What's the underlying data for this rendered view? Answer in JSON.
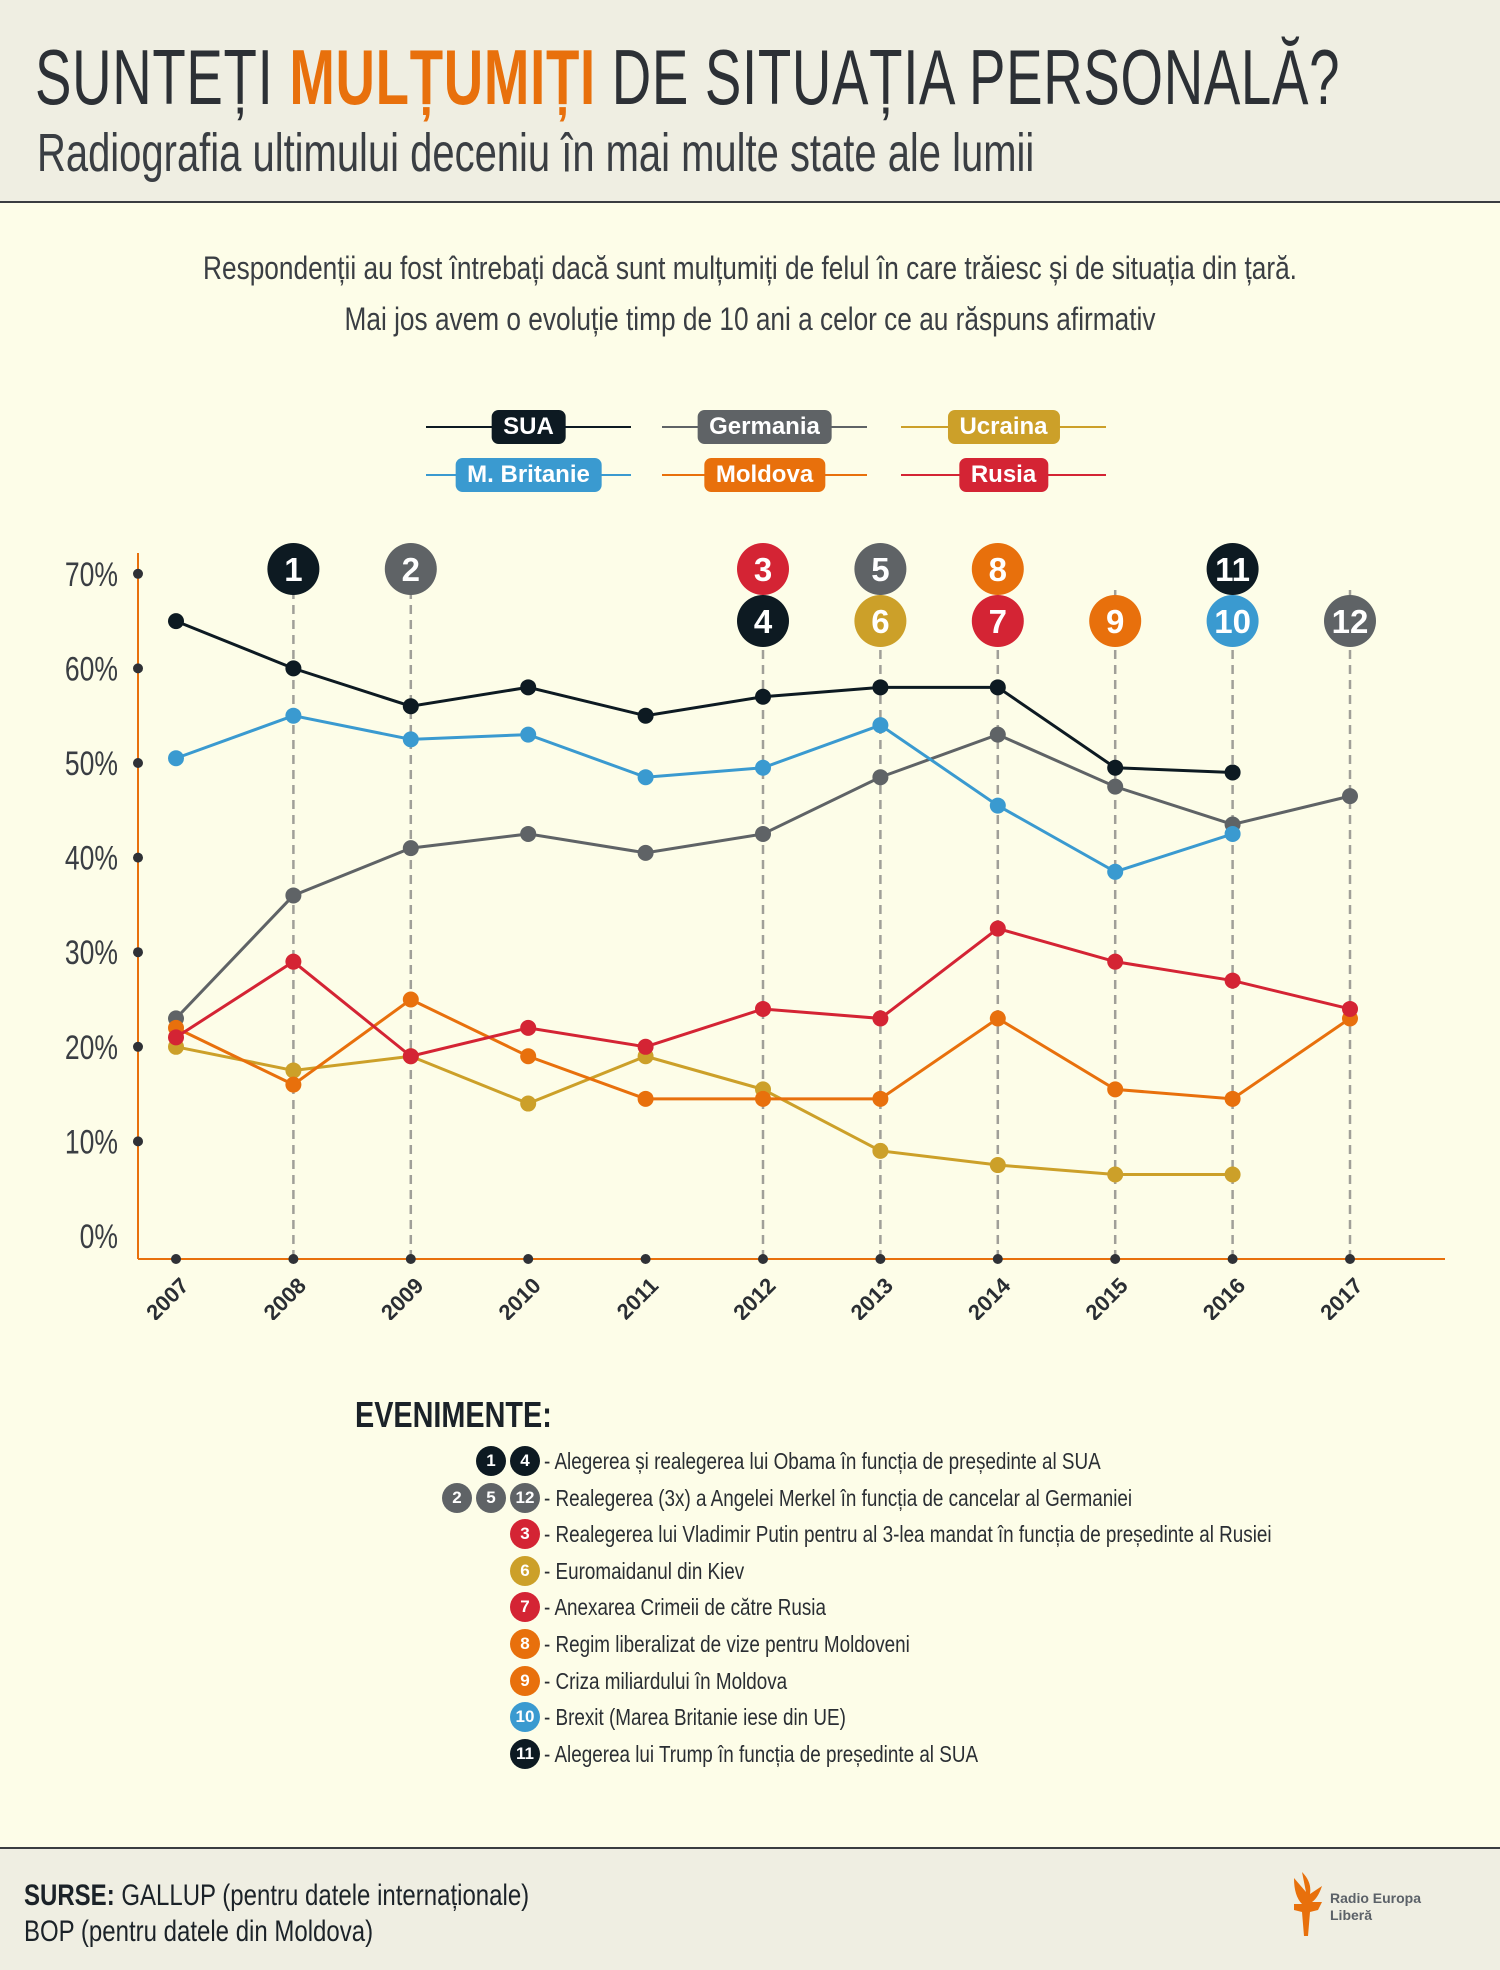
{
  "header": {
    "title_pre": "SUNTEȚI ",
    "title_highlight": "MULȚUMIȚI",
    "title_post": " DE SITUAȚIA PERSONALĂ?",
    "subtitle": "Radiografia ultimului deceniu în mai multe state ale lumii"
  },
  "intro": {
    "line1": "Respondenții au fost întrebați dacă sunt mulțumiți de felul în care trăiesc și de situația din țară.",
    "line2": "Mai jos avem o evoluție timp de 10 ani a celor ce au răspuns afirmativ"
  },
  "colors": {
    "accent": "#e8700c",
    "SUA": "#0d1a22",
    "Germania": "#5f6366",
    "Ucraina": "#cca029",
    "M. Britanie": "#3a9ad0",
    "Moldova": "#e8700c",
    "Rusia": "#d42434",
    "marker": "#2f3136",
    "dash": "#a09f98"
  },
  "chart_data": {
    "type": "line",
    "title": "",
    "xlabel": "",
    "ylabel": "",
    "ylim": [
      0,
      70
    ],
    "yticks": [
      0,
      10,
      20,
      30,
      40,
      50,
      60,
      70
    ],
    "ytick_labels": [
      "0%",
      "10%",
      "20%",
      "30%",
      "40%",
      "50%",
      "60%",
      "70%"
    ],
    "x": [
      2007,
      2008,
      2009,
      2010,
      2011,
      2012,
      2013,
      2014,
      2015,
      2016,
      2017
    ],
    "xtick_labels": [
      "2007",
      "2008",
      "2009",
      "2010",
      "2011",
      "2012",
      "2013",
      "2014",
      "2015",
      "2016",
      "2017"
    ],
    "legend_position": "top",
    "series": [
      {
        "name": "SUA",
        "values": [
          65,
          60,
          56,
          58,
          55,
          57,
          58,
          58,
          49.5,
          49,
          null
        ]
      },
      {
        "name": "Germania",
        "values": [
          23,
          36,
          41,
          42.5,
          40.5,
          42.5,
          48.5,
          53,
          47.5,
          43.5,
          46.5
        ]
      },
      {
        "name": "Ucraina",
        "values": [
          20,
          17.5,
          19,
          14,
          19,
          15.5,
          9,
          7.5,
          6.5,
          6.5,
          null
        ]
      },
      {
        "name": "M. Britanie",
        "values": [
          50.5,
          55,
          52.5,
          53,
          48.5,
          49.5,
          54,
          45.5,
          38.5,
          42.5,
          null
        ]
      },
      {
        "name": "Moldova",
        "values": [
          22,
          16,
          25,
          19,
          14.5,
          14.5,
          14.5,
          23,
          15.5,
          14.5,
          23
        ]
      },
      {
        "name": "Rusia",
        "values": [
          21,
          29,
          19,
          22,
          20,
          24,
          23,
          32.5,
          29,
          27,
          24
        ]
      }
    ],
    "annotations": [
      {
        "num": "1",
        "year": 2008,
        "color": "SUA"
      },
      {
        "num": "2",
        "year": 2009,
        "color": "Germania"
      },
      {
        "num": "3",
        "year": 2012,
        "color": "Rusia"
      },
      {
        "num": "4",
        "year": 2012,
        "color": "SUA"
      },
      {
        "num": "5",
        "year": 2013,
        "color": "Germania"
      },
      {
        "num": "6",
        "year": 2013,
        "color": "Ucraina"
      },
      {
        "num": "8",
        "year": 2014,
        "color": "Moldova"
      },
      {
        "num": "7",
        "year": 2014,
        "color": "Rusia"
      },
      {
        "num": "9",
        "year": 2015,
        "color": "Moldova"
      },
      {
        "num": "11",
        "year": 2016,
        "color": "SUA"
      },
      {
        "num": "10",
        "year": 2016,
        "color": "M. Britanie"
      },
      {
        "num": "12",
        "year": 2017,
        "color": "Germania"
      }
    ]
  },
  "events": {
    "title": "EVENIMENTE:",
    "items": [
      {
        "nums": [
          [
            "1",
            "SUA"
          ],
          [
            "4",
            "SUA"
          ]
        ],
        "text": "- Alegerea și realegerea lui Obama în funcția de președinte al SUA"
      },
      {
        "nums": [
          [
            "2",
            "Germania"
          ],
          [
            "5",
            "Germania"
          ],
          [
            "12",
            "Germania"
          ]
        ],
        "text": "- Realegerea (3x) a Angelei Merkel în funcția de cancelar al Germaniei"
      },
      {
        "nums": [
          [
            "3",
            "Rusia"
          ]
        ],
        "text": "- Realegerea lui Vladimir Putin pentru al 3-lea mandat în funcția de președinte al Rusiei"
      },
      {
        "nums": [
          [
            "6",
            "Ucraina"
          ]
        ],
        "text": "- Euromaidanul din Kiev"
      },
      {
        "nums": [
          [
            "7",
            "Rusia"
          ]
        ],
        "text": "- Anexarea Crimeii de către Rusia"
      },
      {
        "nums": [
          [
            "8",
            "Moldova"
          ]
        ],
        "text": "- Regim liberalizat de vize pentru Moldoveni"
      },
      {
        "nums": [
          [
            "9",
            "Moldova"
          ]
        ],
        "text": "- Criza miliardului în Moldova"
      },
      {
        "nums": [
          [
            "10",
            "M. Britanie"
          ]
        ],
        "text": "- Brexit (Marea Britanie iese din UE)"
      },
      {
        "nums": [
          [
            "11",
            "SUA"
          ]
        ],
        "text": "- Alegerea lui Trump în funcția de președinte al SUA"
      }
    ]
  },
  "footer": {
    "src_label": "SURSE:",
    "src1": " GALLUP (pentru datele internaționale)",
    "src2": "BOP (pentru datele din Moldova)",
    "logo_line1": "Radio Europa",
    "logo_line2": "Liberă"
  }
}
